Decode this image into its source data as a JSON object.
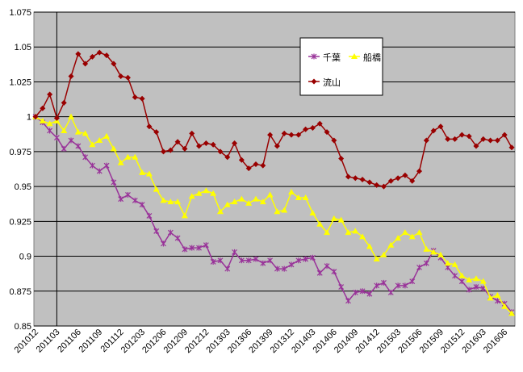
{
  "chart_data": {
    "type": "line",
    "categories": [
      "201012",
      null,
      null,
      "201103",
      null,
      null,
      "201106",
      null,
      null,
      "201109",
      null,
      null,
      "201112",
      null,
      null,
      "201203",
      null,
      null,
      "201206",
      null,
      null,
      "201209",
      null,
      null,
      "201212",
      null,
      null,
      "201303",
      null,
      null,
      "201306",
      null,
      null,
      "201309",
      null,
      null,
      "201312",
      null,
      null,
      "201403",
      null,
      null,
      "201406",
      null,
      null,
      "201409",
      null,
      null,
      "201412",
      null,
      null,
      "201503",
      null,
      null,
      "201506",
      null,
      null,
      "201509",
      null,
      null,
      "201512",
      null,
      null,
      "201603",
      null,
      null,
      "201606",
      null
    ],
    "series": [
      {
        "name": "千葉",
        "color": "#993399",
        "marker": "star",
        "values": [
          1.0,
          0.996,
          0.99,
          0.985,
          0.977,
          0.983,
          0.979,
          0.971,
          0.965,
          0.961,
          0.965,
          0.953,
          0.941,
          0.944,
          0.94,
          0.937,
          0.929,
          0.918,
          0.909,
          0.917,
          0.913,
          0.905,
          0.906,
          0.906,
          0.908,
          0.896,
          0.897,
          0.891,
          0.903,
          0.897,
          0.897,
          0.898,
          0.895,
          0.897,
          0.891,
          0.891,
          0.894,
          0.897,
          0.898,
          0.899,
          0.888,
          0.893,
          0.889,
          0.878,
          0.868,
          0.874,
          0.875,
          0.873,
          0.879,
          0.881,
          0.874,
          0.879,
          0.879,
          0.882,
          0.892,
          0.895,
          0.904,
          0.899,
          0.892,
          0.886,
          0.882,
          0.876,
          0.878,
          0.877,
          0.871,
          0.868,
          0.866,
          0.86
        ]
      },
      {
        "name": "船橋",
        "color": "#ffff00",
        "marker": "triangle",
        "values": [
          1.0,
          0.997,
          0.995,
          0.997,
          0.99,
          1.0,
          0.989,
          0.988,
          0.98,
          0.983,
          0.986,
          0.977,
          0.967,
          0.971,
          0.971,
          0.96,
          0.959,
          0.948,
          0.94,
          0.939,
          0.939,
          0.929,
          0.943,
          0.945,
          0.947,
          0.945,
          0.932,
          0.937,
          0.939,
          0.941,
          0.938,
          0.941,
          0.939,
          0.944,
          0.932,
          0.933,
          0.946,
          0.942,
          0.942,
          0.931,
          0.923,
          0.917,
          0.927,
          0.926,
          0.917,
          0.918,
          0.914,
          0.907,
          0.898,
          0.901,
          0.908,
          0.913,
          0.917,
          0.914,
          0.917,
          0.905,
          0.903,
          0.901,
          0.895,
          0.894,
          0.886,
          0.883,
          0.884,
          0.882,
          0.87,
          0.872,
          0.864,
          0.859
        ]
      },
      {
        "name": "流山",
        "color": "#990000",
        "marker": "diamond",
        "values": [
          1.0,
          1.006,
          1.016,
          0.999,
          1.01,
          1.029,
          1.045,
          1.038,
          1.043,
          1.046,
          1.044,
          1.038,
          1.029,
          1.028,
          1.014,
          1.013,
          0.993,
          0.989,
          0.975,
          0.976,
          0.982,
          0.977,
          0.988,
          0.979,
          0.981,
          0.98,
          0.975,
          0.971,
          0.981,
          0.969,
          0.963,
          0.966,
          0.965,
          0.987,
          0.979,
          0.988,
          0.987,
          0.987,
          0.991,
          0.992,
          0.995,
          0.989,
          0.983,
          0.97,
          0.957,
          0.956,
          0.955,
          0.953,
          0.951,
          0.95,
          0.954,
          0.956,
          0.958,
          0.954,
          0.961,
          0.983,
          0.99,
          0.993,
          0.984,
          0.984,
          0.987,
          0.986,
          0.979,
          0.984,
          0.983,
          0.983,
          0.987,
          0.978
        ]
      }
    ],
    "ylim": [
      0.85,
      1.075
    ],
    "yticks": [
      0.85,
      0.875,
      0.9,
      0.925,
      0.95,
      0.975,
      1,
      1.025,
      1.05,
      1.075
    ],
    "grid": true,
    "legend": "upper right"
  }
}
